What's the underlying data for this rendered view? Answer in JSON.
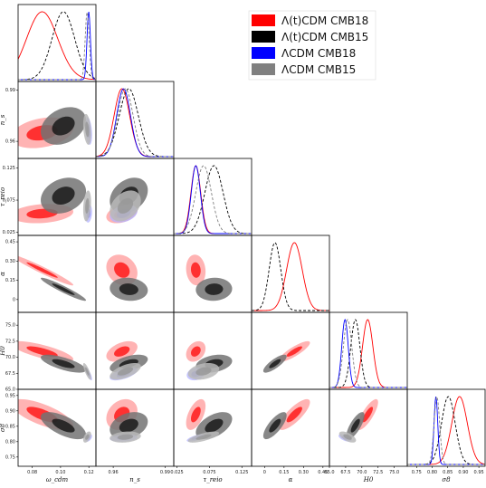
{
  "colors": {
    "t_cmb18": "#ff0000",
    "t_cmb15": "#000000",
    "l_cmb18": "#0000ff",
    "l_cmb15": "#808080"
  },
  "legend": {
    "placement": "top-right",
    "entries": [
      {
        "key": "t_cmb18",
        "label": "Λ(t)CDM CMB18"
      },
      {
        "key": "t_cmb15",
        "label": "Λ(t)CDM CMB15"
      },
      {
        "key": "l_cmb18",
        "label": "ΛCDM CMB18"
      },
      {
        "key": "l_cmb15",
        "label": "ΛCDM CMB15"
      }
    ]
  },
  "chart_data": {
    "type": "triangle-contour",
    "parameters": [
      {
        "key": "omega_cdm",
        "label": "ω_cdm",
        "range": [
          0.07,
          0.125
        ],
        "ticks": [
          0.08,
          0.1,
          0.12
        ],
        "tick_labels": [
          "0.08",
          "0.10",
          "0.12"
        ]
      },
      {
        "key": "n_s",
        "label": "n_s",
        "range": [
          0.95,
          0.995
        ],
        "ticks": [
          0.96,
          0.99
        ],
        "tick_labels": [
          "0.96",
          "0.99"
        ]
      },
      {
        "key": "tau_reio",
        "label": "τ_reio",
        "range": [
          0.02,
          0.14
        ],
        "ticks": [
          0.025,
          0.075,
          0.125
        ],
        "tick_labels": [
          "0.025",
          "0.075",
          "0.125"
        ]
      },
      {
        "key": "alpha",
        "label": "α",
        "range": [
          -0.1,
          0.5
        ],
        "ticks": [
          0.0,
          0.15,
          0.3,
          0.45
        ],
        "tick_labels": [
          "0",
          "0.15",
          "0.30",
          "0.45"
        ]
      },
      {
        "key": "H0",
        "label": "H0",
        "range": [
          65,
          77
        ],
        "ticks": [
          65.0,
          67.5,
          70.0,
          72.5,
          75.0
        ],
        "tick_labels": [
          "65.0",
          "67.5",
          "70.0",
          "72.5",
          "75.0"
        ]
      },
      {
        "key": "sigma8",
        "label": "σ8",
        "range": [
          0.72,
          0.97
        ],
        "ticks": [
          0.75,
          0.8,
          0.85,
          0.9,
          0.95
        ],
        "tick_labels": [
          "0.75",
          "0.80",
          "0.85",
          "0.90",
          "0.95"
        ]
      }
    ],
    "series": [
      {
        "key": "t_cmb18",
        "line": "solid",
        "mean": [
          0.087,
          0.965,
          0.054,
          0.23,
          70.9,
          0.888
        ],
        "sigma": [
          0.011,
          0.0045,
          0.0075,
          0.06,
          0.8,
          0.025
        ],
        "filled": true,
        "fill_alpha": [
          0.35,
          0.9
        ]
      },
      {
        "key": "t_cmb15",
        "line": "dashed",
        "mean": [
          0.102,
          0.969,
          0.082,
          0.08,
          69.0,
          0.852
        ],
        "sigma": [
          0.008,
          0.0055,
          0.014,
          0.045,
          0.7,
          0.022
        ],
        "filled": true,
        "fill_alpha": [
          0.55,
          0.9
        ]
      },
      {
        "key": "l_cmb18",
        "line": "solid",
        "mean": [
          0.1199,
          0.966,
          0.054,
          null,
          67.4,
          0.812
        ],
        "sigma": [
          0.0012,
          0.004,
          0.007,
          null,
          0.5,
          0.006
        ],
        "filled": true,
        "fill_alpha": [
          0.3,
          0.55
        ]
      },
      {
        "key": "l_cmb15",
        "line": "dashed",
        "mean": [
          0.1188,
          0.967,
          0.066,
          null,
          67.8,
          0.815
        ],
        "sigma": [
          0.0014,
          0.0045,
          0.012,
          null,
          0.65,
          0.009
        ],
        "filled": true,
        "fill_alpha": [
          0.55,
          0.8
        ]
      }
    ],
    "correlations": {
      "omega_cdm-n_s": [
        0.3,
        0.3,
        -0.3,
        -0.3
      ],
      "omega_cdm-tau_reio": [
        0.2,
        0.25,
        0.2,
        0.25
      ],
      "omega_cdm-alpha": [
        -0.97,
        -0.95,
        0,
        0
      ],
      "omega_cdm-H0": [
        -0.75,
        -0.7,
        -0.8,
        -0.8
      ],
      "omega_cdm-sigma8": [
        -0.7,
        -0.65,
        0.5,
        0.5
      ],
      "n_s-tau_reio": [
        0.35,
        0.3,
        0.3,
        0.35
      ],
      "n_s-alpha": [
        -0.2,
        -0.1,
        0,
        0
      ],
      "n_s-H0": [
        0.45,
        0.5,
        0.6,
        0.6
      ],
      "n_s-sigma8": [
        0.25,
        0.3,
        0.2,
        0.2
      ],
      "tau_reio-alpha": [
        -0.1,
        0.05,
        0,
        0
      ],
      "tau_reio-H0": [
        0.3,
        0.3,
        0.2,
        0.3
      ],
      "tau_reio-sigma8": [
        0.55,
        0.5,
        0.7,
        0.7
      ],
      "alpha-H0": [
        0.85,
        0.8,
        0,
        0
      ],
      "alpha-sigma8": [
        0.8,
        0.75,
        0,
        0
      ],
      "H0-sigma8": [
        0.8,
        0.75,
        -0.6,
        -0.6
      ]
    }
  }
}
